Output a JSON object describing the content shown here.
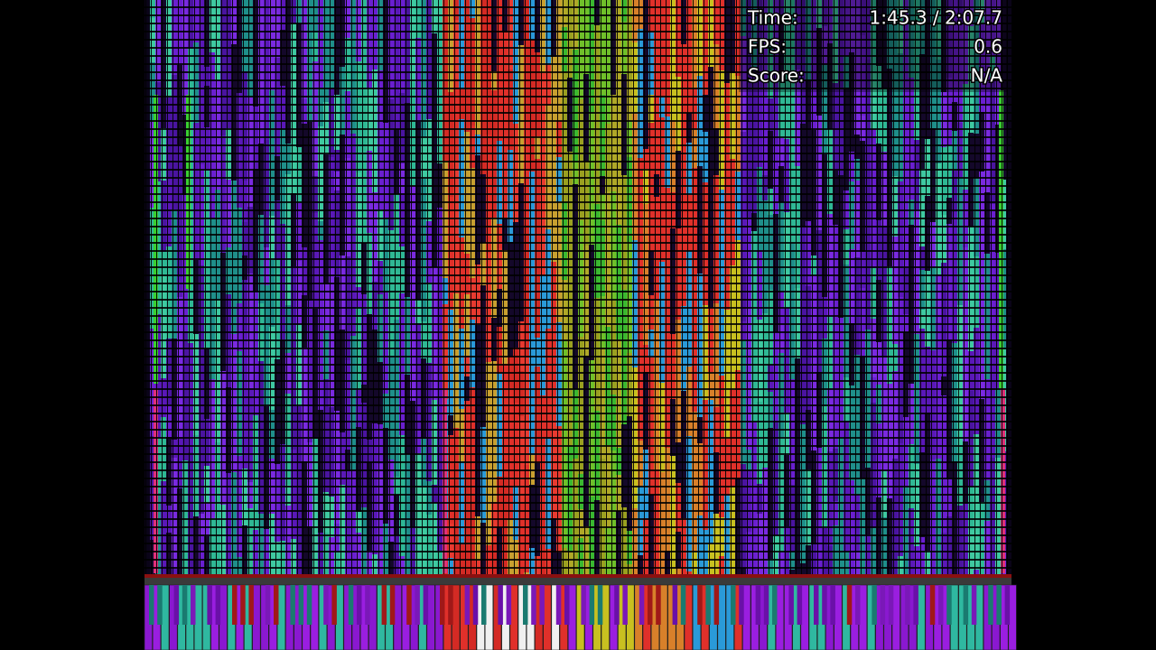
{
  "hud": {
    "rows": [
      {
        "label": "Time:",
        "value": "1:45.3 / 2:07.7"
      },
      {
        "label": "FPS:",
        "value": "0.6"
      },
      {
        "label": "Score:",
        "value": "N/A"
      }
    ]
  }
}
